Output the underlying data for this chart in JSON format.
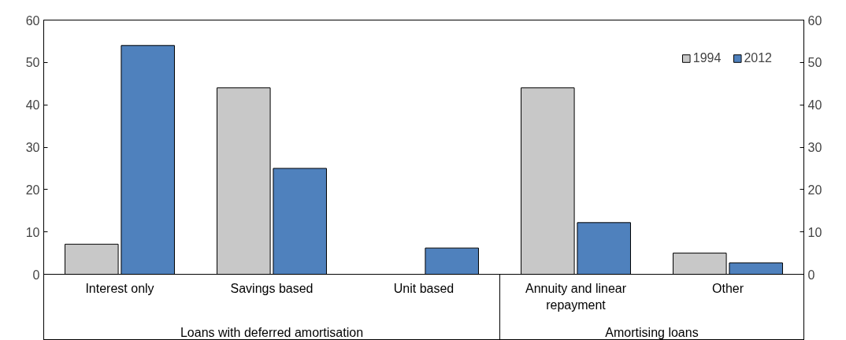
{
  "chart_data": {
    "type": "bar",
    "categories": [
      "Interest only",
      "Savings based",
      "Unit based",
      "Annuity and linear repayment",
      "Other"
    ],
    "series": [
      {
        "name": "1994",
        "color": "#c8c8c8",
        "values": [
          7.1,
          44,
          null,
          44,
          5
        ]
      },
      {
        "name": "2012",
        "color": "#4f81bd",
        "values": [
          54,
          25,
          6.2,
          12.2,
          2.7
        ]
      }
    ],
    "ylim": [
      0,
      60
    ],
    "yticks": [
      0,
      10,
      20,
      30,
      40,
      50,
      60
    ],
    "y2lim": [
      0,
      60
    ],
    "y2ticks": [
      0,
      10,
      20,
      30,
      40,
      50,
      60
    ],
    "annotations": [
      "Loans with deferred amortisation",
      "Amortising loans"
    ],
    "legend": "top right",
    "grid": false
  }
}
